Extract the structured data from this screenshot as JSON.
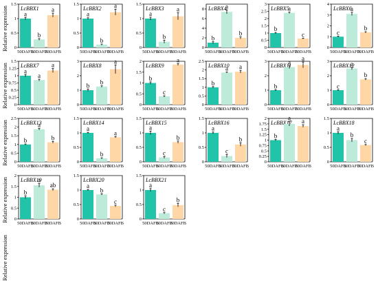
{
  "figure": {
    "ylabel": "Relative expression",
    "categories": [
      "50DAFB",
      "60DAFB",
      "70DAFB"
    ],
    "colors": [
      "#21c4a8",
      "#bdebd9",
      "#ffd7a6"
    ]
  },
  "chart_data": [
    {
      "type": "bar",
      "title": "LcBBX1",
      "categories": [
        "50DAFB",
        "60DAFB",
        "70DAFB"
      ],
      "values": [
        1.0,
        0.28,
        1.12
      ],
      "errors": [
        0.04,
        0.03,
        0.07
      ],
      "letters": [
        "a",
        "b",
        "a"
      ],
      "ylim": [
        0,
        1.5
      ],
      "yticks": [
        0,
        0.5,
        1,
        1.5
      ]
    },
    {
      "type": "bar",
      "title": "LcBBX2",
      "categories": [
        "50DAFB",
        "60DAFB",
        "70DAFB"
      ],
      "values": [
        1.0,
        0.1,
        1.22
      ],
      "errors": [
        0.03,
        0.02,
        0.1
      ],
      "letters": [
        "a",
        "b",
        "a"
      ],
      "ylim": [
        0,
        1.5
      ],
      "yticks": [
        0,
        0.5,
        1,
        1.5
      ]
    },
    {
      "type": "bar",
      "title": "LcBBX3",
      "categories": [
        "50DAFB",
        "60DAFB",
        "70DAFB"
      ],
      "values": [
        1.0,
        0.2,
        1.08
      ],
      "errors": [
        0.05,
        0.05,
        0.12
      ],
      "letters": [
        "a",
        "b",
        "a"
      ],
      "ylim": [
        0,
        1.5
      ],
      "yticks": [
        0,
        0.5,
        1,
        1.5
      ]
    },
    {
      "type": "bar",
      "title": "LcBBX4",
      "categories": [
        "50DAFB",
        "60DAFB",
        "70DAFB"
      ],
      "values": [
        1.0,
        7.4,
        2.0
      ],
      "errors": [
        0.2,
        0.4,
        0.2
      ],
      "letters": [
        "b",
        "a",
        "b"
      ],
      "ylim": [
        0,
        9
      ],
      "yticks": [
        0,
        2,
        4,
        6,
        8
      ]
    },
    {
      "type": "bar",
      "title": "LcBBX5",
      "categories": [
        "50DAFB",
        "60DAFB",
        "70DAFB"
      ],
      "values": [
        1.0,
        2.4,
        0.62
      ],
      "errors": [
        0.04,
        0.05,
        0.03
      ],
      "letters": [
        "b",
        "a",
        "c"
      ],
      "ylim": [
        0,
        3
      ],
      "yticks": [
        0,
        0.5,
        1,
        1.5,
        2,
        2.5,
        3
      ]
    },
    {
      "type": "bar",
      "title": "LcBBX6",
      "categories": [
        "50DAFB",
        "60DAFB",
        "70DAFB"
      ],
      "values": [
        1.0,
        3.1,
        1.4
      ],
      "errors": [
        0.05,
        0.15,
        0.06
      ],
      "letters": [
        "c",
        "a",
        "b"
      ],
      "ylim": [
        0,
        4
      ],
      "yticks": [
        0,
        1,
        2,
        3,
        4
      ]
    },
    {
      "type": "bar",
      "title": "LcBBX7",
      "categories": [
        "50DAFB",
        "60DAFB",
        "70DAFB"
      ],
      "values": [
        1.0,
        0.85,
        1.18
      ],
      "errors": [
        0.04,
        0.03,
        0.07
      ],
      "letters": [
        "a",
        "a",
        "a"
      ],
      "ylim": [
        0,
        1.5
      ],
      "yticks": [
        0,
        0.25,
        0.5,
        0.75,
        1,
        1.25,
        1.5
      ]
    },
    {
      "type": "bar",
      "title": "LcBBX8",
      "categories": [
        "50DAFB",
        "60DAFB",
        "70DAFB"
      ],
      "values": [
        1.0,
        1.25,
        2.45
      ],
      "errors": [
        0.08,
        0.05,
        0.3
      ],
      "letters": [
        "b",
        "b",
        "a"
      ],
      "ylim": [
        0,
        3
      ],
      "yticks": [
        0,
        1,
        2,
        3
      ]
    },
    {
      "type": "bar",
      "title": "LcBBX9",
      "categories": [
        "50DAFB",
        "60DAFB",
        "70DAFB"
      ],
      "values": [
        1.0,
        0.38,
        1.85
      ],
      "errors": [
        0.05,
        0.03,
        0.04
      ],
      "letters": [
        "b",
        "c",
        "a"
      ],
      "ylim": [
        0,
        2
      ],
      "yticks": [
        0,
        0.5,
        1,
        1.5,
        2
      ]
    },
    {
      "type": "bar",
      "title": "LcBBX10",
      "categories": [
        "50DAFB",
        "60DAFB",
        "70DAFB"
      ],
      "values": [
        1.0,
        1.85,
        1.9
      ],
      "errors": [
        0.04,
        0.03,
        0.08
      ],
      "letters": [
        "b",
        "a",
        "a"
      ],
      "ylim": [
        0,
        2.5
      ],
      "yticks": [
        0,
        0.5,
        1,
        1.5,
        2,
        2.5
      ]
    },
    {
      "type": "bar",
      "title": "LcBBX11",
      "categories": [
        "50DAFB",
        "60DAFB",
        "70DAFB"
      ],
      "values": [
        1.0,
        2.6,
        2.75
      ],
      "errors": [
        0.03,
        0.1,
        0.2
      ],
      "letters": [
        "b",
        "a",
        "a"
      ],
      "ylim": [
        0,
        3
      ],
      "yticks": [
        0,
        1,
        2,
        3
      ]
    },
    {
      "type": "bar",
      "title": "LcBBX12",
      "categories": [
        "50DAFB",
        "60DAFB",
        "70DAFB"
      ],
      "values": [
        1.0,
        2.5,
        1.75
      ],
      "errors": [
        0.03,
        0.08,
        0.05
      ],
      "letters": [
        "c",
        "a",
        "b"
      ],
      "ylim": [
        0,
        3
      ],
      "yticks": [
        0,
        1,
        2,
        3
      ]
    },
    {
      "type": "bar",
      "title": "LcBBX13",
      "categories": [
        "50DAFB",
        "60DAFB",
        "70DAFB"
      ],
      "values": [
        1.0,
        1.88,
        1.12
      ],
      "errors": [
        0.03,
        0.05,
        0.05
      ],
      "letters": [
        "b",
        "a",
        "b"
      ],
      "ylim": [
        0,
        2.5
      ],
      "yticks": [
        0,
        0.5,
        1,
        1.5,
        2,
        2.5
      ]
    },
    {
      "type": "bar",
      "title": "LcBBX14",
      "categories": [
        "50DAFB",
        "60DAFB",
        "70DAFB"
      ],
      "values": [
        1.0,
        0.12,
        0.85
      ],
      "errors": [
        0.02,
        0.02,
        0.02
      ],
      "letters": [
        "a",
        "b",
        "a"
      ],
      "ylim": [
        0,
        1.5
      ],
      "yticks": [
        0,
        0.5,
        1,
        1.5
      ]
    },
    {
      "type": "bar",
      "title": "LcBBX15",
      "categories": [
        "50DAFB",
        "60DAFB",
        "70DAFB"
      ],
      "values": [
        1.0,
        0.15,
        0.68
      ],
      "errors": [
        0.06,
        0.03,
        0.04
      ],
      "letters": [
        "a",
        "c",
        "b"
      ],
      "ylim": [
        0,
        1.5
      ],
      "yticks": [
        0,
        0.5,
        1,
        1.5
      ]
    },
    {
      "type": "bar",
      "title": "LcBBX16",
      "categories": [
        "50DAFB",
        "60DAFB",
        "70DAFB"
      ],
      "values": [
        1.0,
        0.2,
        0.6
      ],
      "errors": [
        0.03,
        0.05,
        0.06
      ],
      "letters": [
        "a",
        "c",
        "b"
      ],
      "ylim": [
        0,
        1.5
      ],
      "yticks": [
        0,
        0.5,
        1,
        1.5
      ]
    },
    {
      "type": "bar",
      "title": "LcBBX17",
      "categories": [
        "50DAFB",
        "60DAFB",
        "70DAFB"
      ],
      "values": [
        1.0,
        1.75,
        1.65
      ],
      "errors": [
        0.03,
        0.1,
        0.06
      ],
      "letters": [
        "b",
        "a",
        "a"
      ],
      "ylim": [
        0,
        2
      ],
      "yticks": [
        0,
        0.25,
        0.5,
        0.75,
        1,
        1.25,
        1.5,
        1.75,
        2
      ]
    },
    {
      "type": "bar",
      "title": "LcBBX18",
      "categories": [
        "50DAFB",
        "60DAFB",
        "70DAFB"
      ],
      "values": [
        1.0,
        0.75,
        0.58
      ],
      "errors": [
        0.04,
        0.06,
        0.02
      ],
      "letters": [
        "a",
        "b",
        "c"
      ],
      "ylim": [
        0,
        1.5
      ],
      "yticks": [
        0,
        0.5,
        1,
        1.5
      ]
    },
    {
      "type": "bar",
      "title": "LcBBX19",
      "categories": [
        "50DAFB",
        "60DAFB",
        "70DAFB"
      ],
      "values": [
        1.0,
        1.55,
        1.35
      ],
      "errors": [
        0.06,
        0.08,
        0.04
      ],
      "letters": [
        "b",
        "a",
        "ab"
      ],
      "ylim": [
        0,
        2
      ],
      "yticks": [
        0,
        0.5,
        1,
        1.5,
        2
      ]
    },
    {
      "type": "bar",
      "title": "LcBBX20",
      "categories": [
        "50DAFB",
        "60DAFB",
        "70DAFB"
      ],
      "values": [
        1.0,
        0.85,
        0.45
      ],
      "errors": [
        0.02,
        0.02,
        0.03
      ],
      "letters": [
        "a",
        "b",
        "c"
      ],
      "ylim": [
        0,
        1.5
      ],
      "yticks": [
        0,
        0.5,
        1,
        1.5
      ]
    },
    {
      "type": "bar",
      "title": "LcBBX21",
      "categories": [
        "50DAFB",
        "60DAFB",
        "70DAFB"
      ],
      "values": [
        1.0,
        0.2,
        0.48
      ],
      "errors": [
        0.05,
        0.02,
        0.06
      ],
      "letters": [
        "a",
        "c",
        "b"
      ],
      "ylim": [
        0,
        1.5
      ],
      "yticks": [
        0,
        0.5,
        1,
        1.5
      ]
    }
  ]
}
